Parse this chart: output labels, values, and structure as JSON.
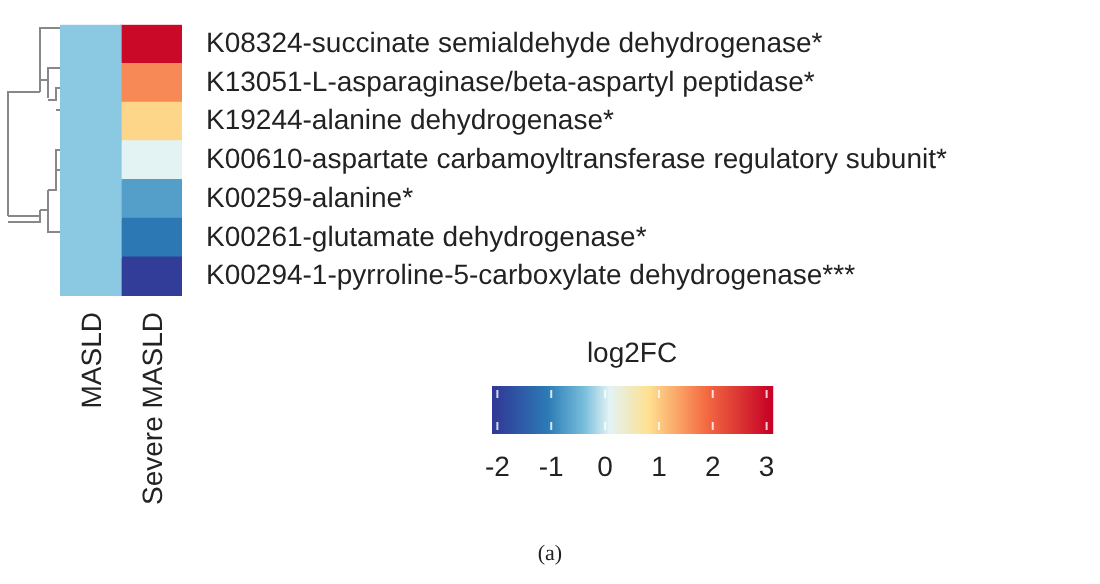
{
  "chart_data": {
    "type": "heatmap",
    "categories": [
      "MASLD",
      "Severe MASLD"
    ],
    "y_categories": [
      "K08324-succinate semialdehyde dehydrogenase*",
      "K13051-L-asparaginase/beta-aspartyl peptidase*",
      "K19244-alanine dehydrogenase*",
      "K00610-aspartate carbamoyltransferase regulatory subunit*",
      "K00259-alanine*",
      "K00261-glutamate dehydrogenase*",
      "K00294-1-pyrroline-5-carboxylate dehydrogenase***"
    ],
    "cells": [
      [
        -0.3,
        3.0
      ],
      [
        -0.3,
        1.6
      ],
      [
        -0.3,
        0.9
      ],
      [
        -0.3,
        0.1
      ],
      [
        -0.3,
        -0.7
      ],
      [
        -0.3,
        -1.1
      ],
      [
        -0.3,
        -2.0
      ]
    ],
    "clabel": "log2FC",
    "clim": [
      -2.1,
      3.1
    ],
    "cticks": [
      -2,
      -1,
      0,
      1,
      2,
      3
    ],
    "annotations": [
      "(a)"
    ]
  }
}
